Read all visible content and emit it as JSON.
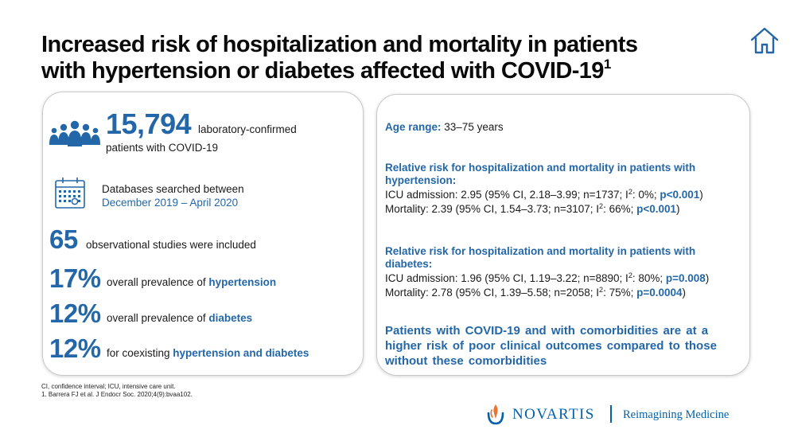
{
  "slide": {
    "title_line1": "Increased risk of hospitalization and mortality in patients",
    "title_line2": "with hypertension or diabetes affected with COVID-19",
    "title_sup": "1"
  },
  "icons": {
    "home": "home-icon",
    "people": "people-group-icon",
    "calendar": "calendar-icon"
  },
  "left_panel": {
    "patients_number": "15,794",
    "patients_text_a": "laboratory-confirmed",
    "patients_text_b": "patients with COVID-19",
    "databases_text": "Databases searched between",
    "databases_range": "December 2019 – April 2020",
    "studies_number": "65",
    "studies_text": "observational studies were included",
    "prevalence": [
      {
        "value": "17%",
        "text": "overall prevalence of ",
        "highlight": "hypertension"
      },
      {
        "value": "12%",
        "text": "overall prevalence of ",
        "highlight": "diabetes"
      },
      {
        "value": "12%",
        "text": "for coexisting ",
        "highlight": "hypertension and diabetes"
      }
    ]
  },
  "right_panel": {
    "age_label": "Age range:",
    "age_value": "33–75 years",
    "hypertension": {
      "heading_a": "Relative risk for hospitalization and mortality in patients with",
      "heading_b": "hypertension:",
      "icu_a": "ICU admission: 2.95 (95% CI, 2.18–3.99; n=1737; I",
      "icu_sup": "2",
      "icu_b": ": 0%; ",
      "icu_p": "p<0.001",
      "icu_end": ")",
      "mort_a": "Mortality:  2.39 (95% CI, 1.54–3.73; n=3107; I",
      "mort_sup": "2",
      "mort_b": ": 66%; ",
      "mort_p": "p<0.001",
      "mort_end": ")"
    },
    "diabetes": {
      "heading_a": "Relative risk for hospitalization and mortality in patients with",
      "heading_b": "diabetes:",
      "icu_a": "ICU admission: 1.96 (95% CI, 1.19–3.22; n=8890; I",
      "icu_sup": "2",
      "icu_b": ": 80%; ",
      "icu_p": "p=0.008",
      "icu_end": ")",
      "mort_a": "Mortality:  2.78 (95% CI, 1.39–5.58; n=2058; I",
      "mort_sup": "2",
      "mort_b": ": 75%; ",
      "mort_p": "p=0.0004",
      "mort_end": ")"
    },
    "conclusion": "Patients with COVID-19 and with comorbidities are at a higher risk of poor clinical outcomes compared to those without these comorbidities"
  },
  "footnotes": {
    "abbrev": "CI,  confidence interval; ICU,  intensive care unit.",
    "reference": "1. Barrera FJ et al. J Endocr Soc. 2020;4(9):bvaa102."
  },
  "brand": {
    "name": "NOVARTIS",
    "tagline": "Reimagining Medicine",
    "color": "#0460a9",
    "flame_color": "#e8742f",
    "accent": "#2467a8"
  }
}
